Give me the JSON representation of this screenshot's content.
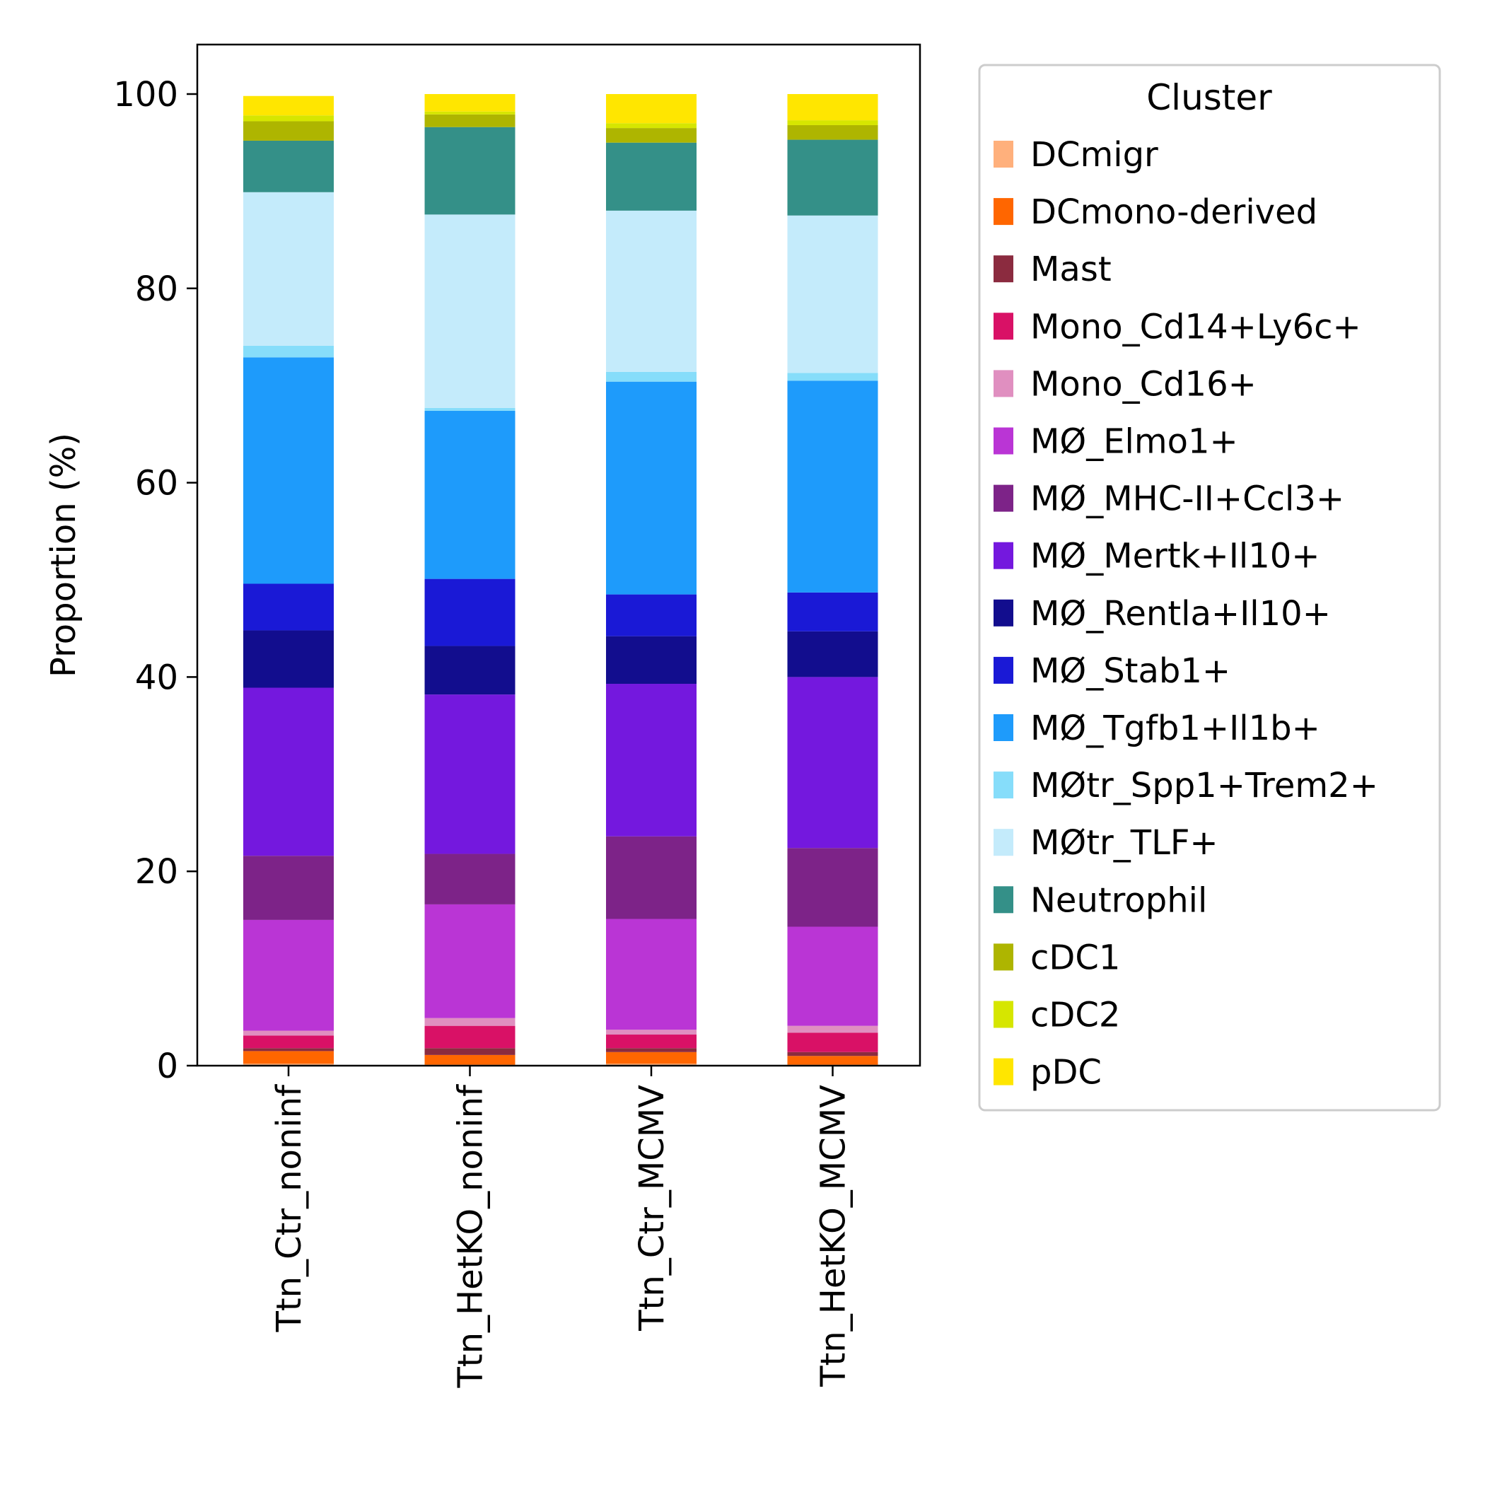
{
  "chart_data": {
    "type": "bar",
    "stacked": true,
    "title": "",
    "xlabel": "",
    "ylabel": "Proportion (%)",
    "ylim": [
      0,
      105
    ],
    "yticks": [
      0,
      20,
      40,
      60,
      80,
      100
    ],
    "grid": false,
    "categories": [
      "Ttn_Ctr_noninf",
      "Ttn_HetKO_noninf",
      "Ttn_Ctr_MCMV",
      "Ttn_HetKO_MCMV"
    ],
    "legend": {
      "title": "Cluster",
      "position": "right"
    },
    "series": [
      {
        "name": "DCmigr",
        "color": "#FFB07C",
        "values": [
          0.2,
          0.1,
          0.2,
          0.1
        ]
      },
      {
        "name": "DCmono-derived",
        "color": "#FF6600",
        "values": [
          1.3,
          1.0,
          1.2,
          0.9
        ]
      },
      {
        "name": "Mast",
        "color": "#8B2B3F",
        "values": [
          0.3,
          0.7,
          0.4,
          0.4
        ]
      },
      {
        "name": "Mono_Cd14+Ly6c+",
        "color": "#D91166",
        "values": [
          1.3,
          2.3,
          1.4,
          2.0
        ]
      },
      {
        "name": "Mono_Cd16+",
        "color": "#E08FC0",
        "values": [
          0.5,
          0.8,
          0.5,
          0.7
        ]
      },
      {
        "name": "MØ_Elmo1+",
        "color": "#BA35D5",
        "values": [
          11.4,
          11.7,
          11.4,
          10.2
        ]
      },
      {
        "name": "MØ_MHC-II+Ccl3+",
        "color": "#7D2388",
        "values": [
          6.6,
          5.2,
          8.5,
          8.1
        ]
      },
      {
        "name": "MØ_Mertk+Il10+",
        "color": "#7418DE",
        "values": [
          17.3,
          16.4,
          15.7,
          17.6
        ]
      },
      {
        "name": "MØ_Rentla+Il10+",
        "color": "#120D8E",
        "values": [
          5.9,
          5.0,
          4.9,
          4.7
        ]
      },
      {
        "name": "MØ_Stab1+",
        "color": "#1A19D6",
        "values": [
          4.8,
          6.9,
          4.3,
          4.0
        ]
      },
      {
        "name": "MØ_Tgfb1+Il1b+",
        "color": "#1E9BFB",
        "values": [
          23.3,
          17.3,
          21.9,
          21.8
        ]
      },
      {
        "name": "MØtr_Spp1+Trem2+",
        "color": "#86DDFA",
        "values": [
          1.2,
          0.3,
          1.0,
          0.8
        ]
      },
      {
        "name": "MØtr_TLF+",
        "color": "#C4EBFB",
        "values": [
          15.8,
          19.9,
          16.6,
          16.2
        ]
      },
      {
        "name": "Neutrophil",
        "color": "#349088",
        "values": [
          5.3,
          9.0,
          7.0,
          7.8
        ]
      },
      {
        "name": "cDC1",
        "color": "#AEB500",
        "values": [
          2.0,
          1.3,
          1.5,
          1.5
        ]
      },
      {
        "name": "cDC2",
        "color": "#D6E600",
        "values": [
          0.6,
          0.3,
          0.5,
          0.5
        ]
      },
      {
        "name": "pDC",
        "color": "#FFE600",
        "values": [
          2.0,
          1.8,
          3.0,
          2.7
        ]
      }
    ]
  }
}
